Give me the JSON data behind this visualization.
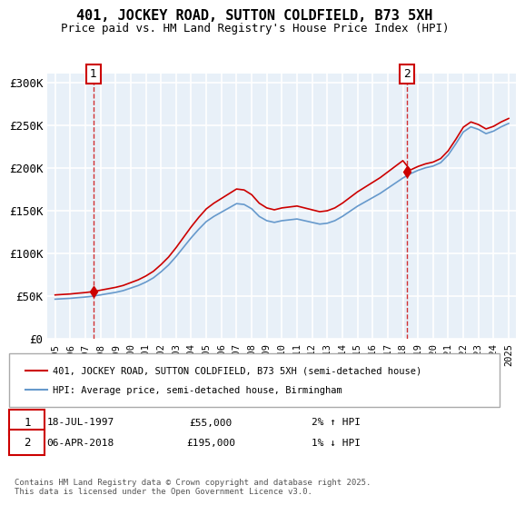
{
  "title": "401, JOCKEY ROAD, SUTTON COLDFIELD, B73 5XH",
  "subtitle": "Price paid vs. HM Land Registry's House Price Index (HPI)",
  "legend_line1": "401, JOCKEY ROAD, SUTTON COLDFIELD, B73 5XH (semi-detached house)",
  "legend_line2": "HPI: Average price, semi-detached house, Birmingham",
  "annotation1": {
    "label": "1",
    "date": "18-JUL-1997",
    "price": "£55,000",
    "note": "2% ↑ HPI",
    "x_year": 1997.54
  },
  "annotation2": {
    "label": "2",
    "date": "06-APR-2018",
    "price": "£195,000",
    "note": "1% ↓ HPI",
    "x_year": 2018.26
  },
  "footer": "Contains HM Land Registry data © Crown copyright and database right 2025.\nThis data is licensed under the Open Government Licence v3.0.",
  "line_color_red": "#cc0000",
  "line_color_blue": "#6699cc",
  "bg_color": "#e8f0f8",
  "grid_color": "#ffffff",
  "ylim": [
    0,
    310000
  ],
  "xlim": [
    1994.5,
    2025.5
  ],
  "yticks": [
    0,
    50000,
    100000,
    150000,
    200000,
    250000,
    300000
  ],
  "ytick_labels": [
    "£0",
    "£50K",
    "£100K",
    "£150K",
    "£200K",
    "£250K",
    "£300K"
  ],
  "xticks": [
    1995,
    1996,
    1997,
    1998,
    1999,
    2000,
    2001,
    2002,
    2003,
    2004,
    2005,
    2006,
    2007,
    2008,
    2009,
    2010,
    2011,
    2012,
    2013,
    2014,
    2015,
    2016,
    2017,
    2018,
    2019,
    2020,
    2021,
    2022,
    2023,
    2024,
    2025
  ],
  "hpi_years": [
    1995,
    1995.5,
    1996,
    1996.5,
    1997,
    1997.5,
    1998,
    1998.5,
    1999,
    1999.5,
    2000,
    2000.5,
    2001,
    2001.5,
    2002,
    2002.5,
    2003,
    2003.5,
    2004,
    2004.5,
    2005,
    2005.5,
    2006,
    2006.5,
    2007,
    2007.5,
    2008,
    2008.5,
    2009,
    2009.5,
    2010,
    2010.5,
    2011,
    2011.5,
    2012,
    2012.5,
    2013,
    2013.5,
    2014,
    2014.5,
    2015,
    2015.5,
    2016,
    2016.5,
    2017,
    2017.5,
    2018,
    2018.5,
    2019,
    2019.5,
    2020,
    2020.5,
    2021,
    2021.5,
    2022,
    2022.5,
    2023,
    2023.5,
    2024,
    2024.5,
    2025
  ],
  "hpi_values": [
    46000,
    46500,
    47000,
    47800,
    48500,
    49500,
    51000,
    52500,
    54000,
    56000,
    59000,
    62000,
    66000,
    71000,
    78000,
    86000,
    96000,
    107000,
    118000,
    128000,
    137000,
    143000,
    148000,
    153000,
    158000,
    157000,
    152000,
    143000,
    138000,
    136000,
    138000,
    139000,
    140000,
    138000,
    136000,
    134000,
    135000,
    138000,
    143000,
    149000,
    155000,
    160000,
    165000,
    170000,
    176000,
    182000,
    188000,
    193000,
    197000,
    200000,
    202000,
    206000,
    215000,
    228000,
    242000,
    248000,
    245000,
    240000,
    243000,
    248000,
    252000
  ],
  "price_years": [
    1997.54,
    2018.26
  ],
  "price_values": [
    55000,
    195000
  ]
}
